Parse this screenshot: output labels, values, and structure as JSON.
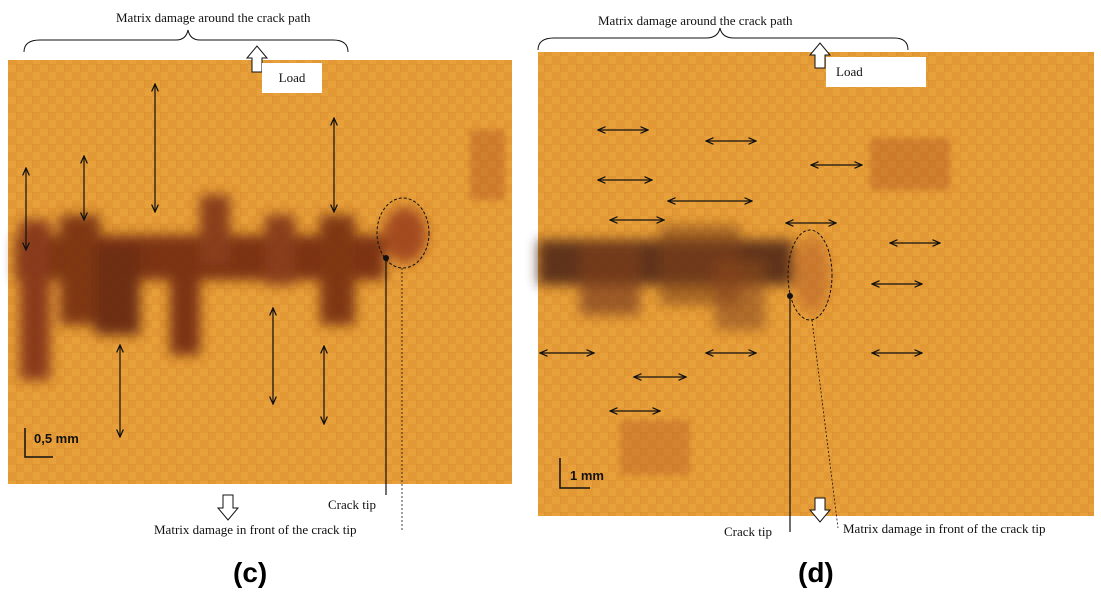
{
  "panel_c": {
    "letter": "(c)",
    "top_label": "Matrix damage around the crack path",
    "load_label": "Load",
    "scale_label": "0,5 mm",
    "crack_tip_label": "Crack tip",
    "bottom_label": "Matrix damage in front of the crack tip"
  },
  "panel_d": {
    "letter": "(d)",
    "top_label": "Matrix damage around the crack path",
    "load_label": "Load",
    "scale_label": "1 mm",
    "crack_tip_label": "Crack tip",
    "bottom_label": "Matrix damage in front of the crack tip"
  },
  "colors": {
    "background_orange": "#e39a30",
    "damage_dark": "#5a1a0c"
  }
}
